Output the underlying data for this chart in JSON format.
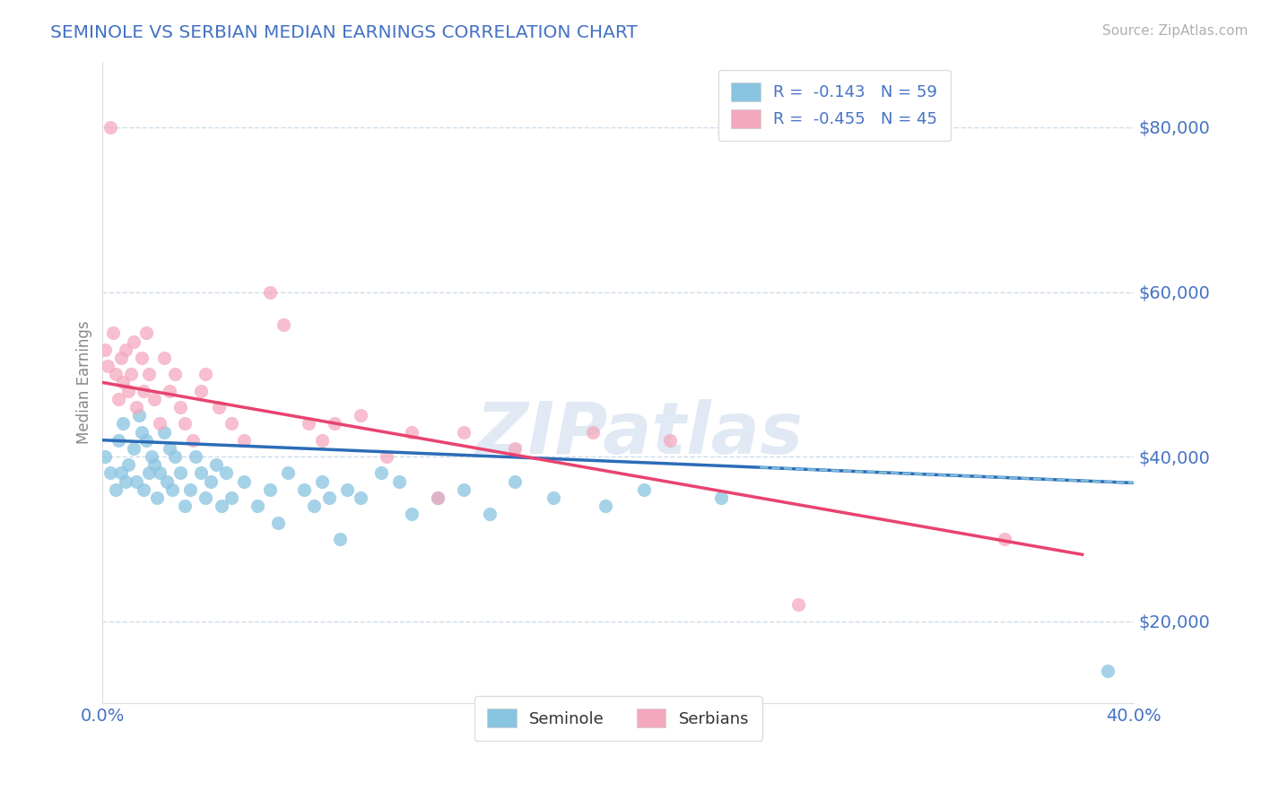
{
  "title": "SEMINOLE VS SERBIAN MEDIAN EARNINGS CORRELATION CHART",
  "source": "Source: ZipAtlas.com",
  "ylabel": "Median Earnings",
  "xlim": [
    0.0,
    0.4
  ],
  "ylim": [
    10000,
    88000
  ],
  "yticks": [
    20000,
    40000,
    60000,
    80000
  ],
  "ytick_labels": [
    "$20,000",
    "$40,000",
    "$60,000",
    "$80,000"
  ],
  "xtick_positions": [
    0.0,
    0.05,
    0.1,
    0.15,
    0.2,
    0.25,
    0.3,
    0.35,
    0.4
  ],
  "xtick_labels": [
    "0.0%",
    "",
    "",
    "",
    "",
    "",
    "",
    "",
    "40.0%"
  ],
  "seminole_color": "#89c4e1",
  "serbian_color": "#f4a8be",
  "seminole_line_color": "#2b6cb8",
  "serbian_line_color": "#e8436e",
  "dashed_line_color": "#89c4e1",
  "background_color": "#ffffff",
  "grid_color": "#c8d8e8",
  "title_color": "#4472c4",
  "axis_label_color": "#4472c4",
  "ylabel_color": "#888888",
  "watermark": "ZIPatlas",
  "legend_seminole": "R =  -0.143   N = 59",
  "legend_serbian": "R =  -0.455   N = 45",
  "bottom_legend_seminole": "Seminole",
  "bottom_legend_serbian": "Serbians",
  "seminole_R": -0.143,
  "seminole_N": 59,
  "serbian_R": -0.455,
  "serbian_N": 45,
  "seminole_intercept": 42000,
  "seminole_slope": -13000,
  "serbian_intercept": 49000,
  "serbian_slope": -55000,
  "seminole_x": [
    0.001,
    0.003,
    0.005,
    0.006,
    0.007,
    0.008,
    0.009,
    0.01,
    0.012,
    0.013,
    0.014,
    0.015,
    0.016,
    0.017,
    0.018,
    0.019,
    0.02,
    0.021,
    0.022,
    0.024,
    0.025,
    0.026,
    0.027,
    0.028,
    0.03,
    0.032,
    0.034,
    0.036,
    0.038,
    0.04,
    0.042,
    0.044,
    0.046,
    0.048,
    0.05,
    0.055,
    0.06,
    0.065,
    0.068,
    0.072,
    0.078,
    0.082,
    0.085,
    0.088,
    0.092,
    0.095,
    0.1,
    0.108,
    0.115,
    0.12,
    0.13,
    0.14,
    0.15,
    0.16,
    0.175,
    0.195,
    0.21,
    0.24,
    0.39
  ],
  "seminole_y": [
    40000,
    38000,
    36000,
    42000,
    38000,
    44000,
    37000,
    39000,
    41000,
    37000,
    45000,
    43000,
    36000,
    42000,
    38000,
    40000,
    39000,
    35000,
    38000,
    43000,
    37000,
    41000,
    36000,
    40000,
    38000,
    34000,
    36000,
    40000,
    38000,
    35000,
    37000,
    39000,
    34000,
    38000,
    35000,
    37000,
    34000,
    36000,
    32000,
    38000,
    36000,
    34000,
    37000,
    35000,
    30000,
    36000,
    35000,
    38000,
    37000,
    33000,
    35000,
    36000,
    33000,
    37000,
    35000,
    34000,
    36000,
    35000,
    14000
  ],
  "serbian_x": [
    0.001,
    0.002,
    0.003,
    0.004,
    0.005,
    0.006,
    0.007,
    0.008,
    0.009,
    0.01,
    0.011,
    0.012,
    0.013,
    0.015,
    0.016,
    0.017,
    0.018,
    0.02,
    0.022,
    0.024,
    0.026,
    0.028,
    0.03,
    0.032,
    0.035,
    0.038,
    0.04,
    0.045,
    0.05,
    0.055,
    0.065,
    0.07,
    0.08,
    0.085,
    0.09,
    0.1,
    0.11,
    0.12,
    0.13,
    0.14,
    0.16,
    0.19,
    0.22,
    0.27,
    0.35
  ],
  "serbian_y": [
    53000,
    51000,
    80000,
    55000,
    50000,
    47000,
    52000,
    49000,
    53000,
    48000,
    50000,
    54000,
    46000,
    52000,
    48000,
    55000,
    50000,
    47000,
    44000,
    52000,
    48000,
    50000,
    46000,
    44000,
    42000,
    48000,
    50000,
    46000,
    44000,
    42000,
    60000,
    56000,
    44000,
    42000,
    44000,
    45000,
    40000,
    43000,
    35000,
    43000,
    41000,
    43000,
    42000,
    22000,
    30000
  ]
}
